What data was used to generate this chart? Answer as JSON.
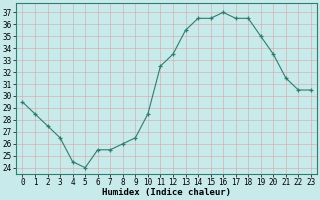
{
  "x": [
    0,
    1,
    2,
    3,
    4,
    5,
    6,
    7,
    8,
    9,
    10,
    11,
    12,
    13,
    14,
    15,
    16,
    17,
    18,
    19,
    20,
    21,
    22,
    23
  ],
  "y": [
    29.5,
    28.5,
    27.5,
    26.5,
    24.5,
    24.0,
    25.5,
    25.5,
    26.0,
    26.5,
    28.5,
    32.5,
    33.5,
    35.5,
    36.5,
    36.5,
    37.0,
    36.5,
    36.5,
    35.0,
    33.5,
    31.5,
    30.5,
    30.5
  ],
  "line_color": "#2e7d6e",
  "marker": "+",
  "marker_color": "#2e7d6e",
  "background_color": "#c8eaea",
  "grid_color": "#b0d8d8",
  "xlabel": "Humidex (Indice chaleur)",
  "ylabel_ticks": [
    24,
    25,
    26,
    27,
    28,
    29,
    30,
    31,
    32,
    33,
    34,
    35,
    36,
    37
  ],
  "ylim": [
    23.5,
    37.8
  ],
  "xlim": [
    -0.5,
    23.5
  ],
  "xticks": [
    0,
    1,
    2,
    3,
    4,
    5,
    6,
    7,
    8,
    9,
    10,
    11,
    12,
    13,
    14,
    15,
    16,
    17,
    18,
    19,
    20,
    21,
    22,
    23
  ],
  "tick_fontsize": 5.5,
  "xlabel_fontsize": 6.5,
  "axis_color": "#2e7d6e",
  "spine_color": "#2e7d6e"
}
